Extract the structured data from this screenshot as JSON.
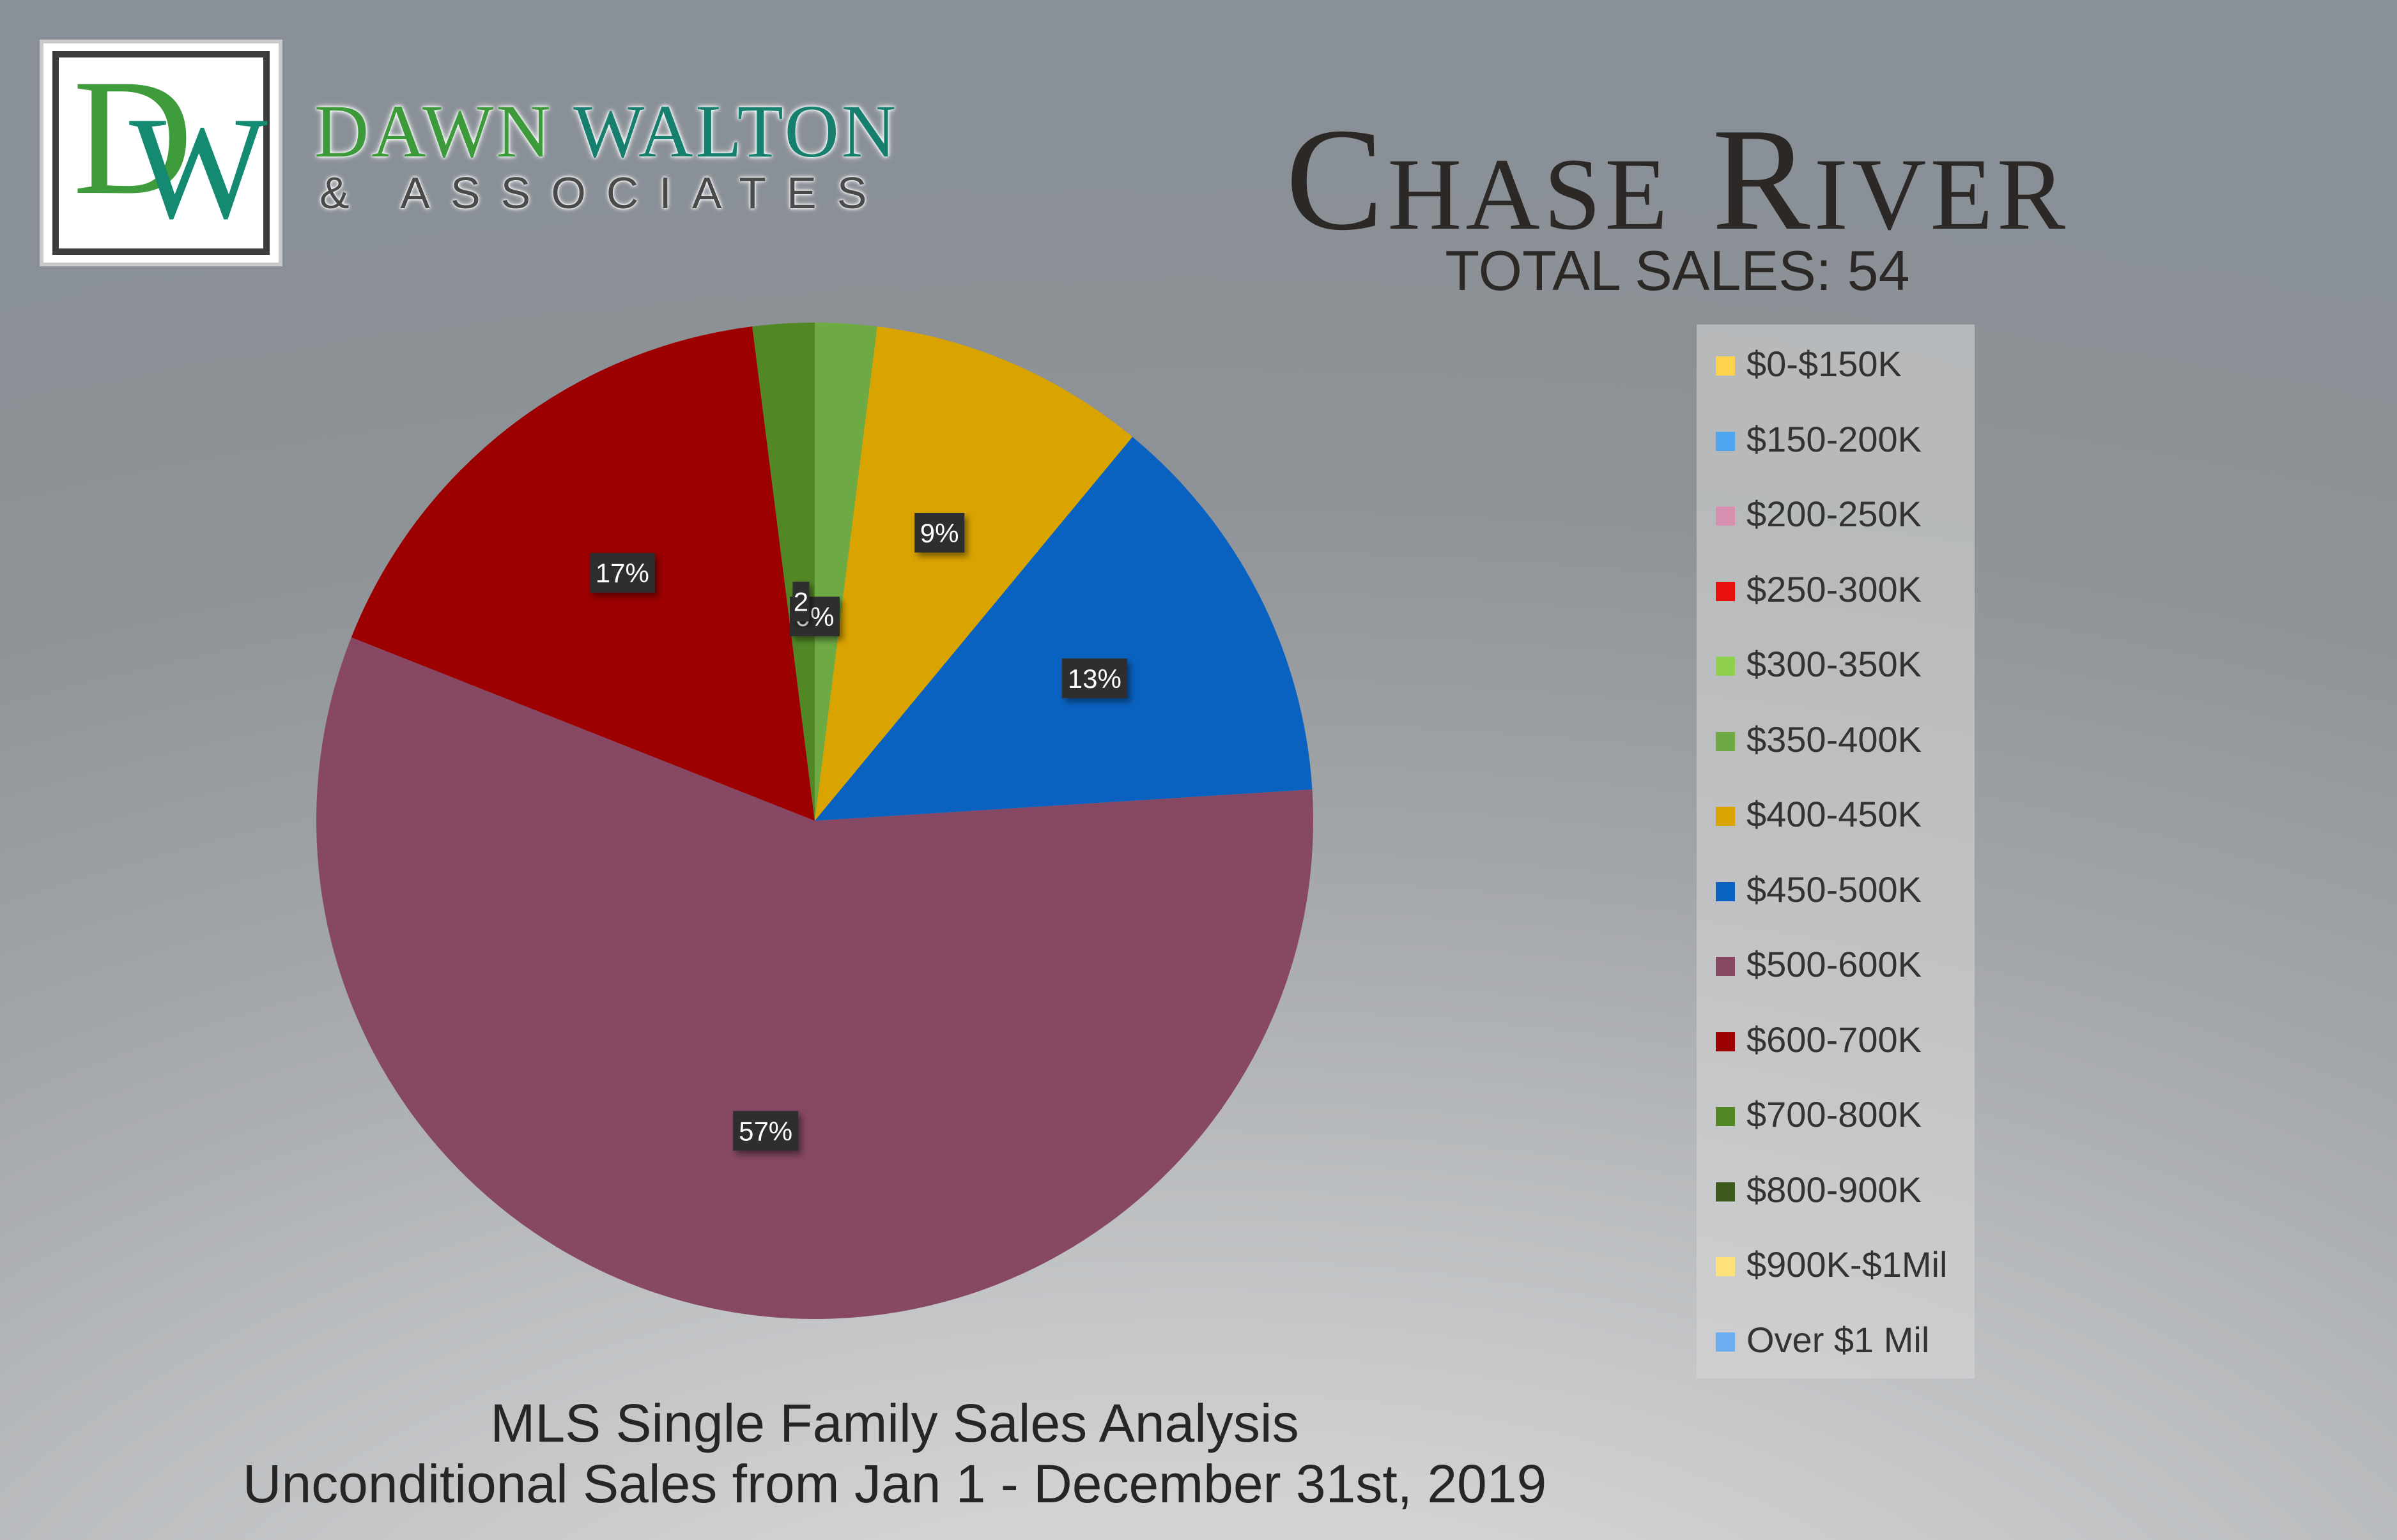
{
  "brand": {
    "logo_letter_d": "D",
    "logo_letter_w": "W",
    "name_part_1": "DAWN ",
    "name_part_2": "WALTON",
    "tagline": "& ASSOCIATES"
  },
  "footer": {
    "line_1": "MLS Single Family Sales Analysis",
    "line_2": "Unconditional Sales from Jan 1 - December 31st, 2019"
  },
  "chart_data": {
    "type": "pie",
    "title": "Chase River",
    "subtitle": "TOTAL SALES: 54",
    "legend_position": "right",
    "categories": [
      "$0-$150K",
      "$150-200K",
      "$200-250K",
      "$250-300K",
      "$300-350K",
      "$350-400K",
      "$400-450K",
      "$450-500K",
      "$500-600K",
      "$600-700K",
      "$700-800K",
      "$800-900K",
      "$900K-$1Mil",
      "Over $1 Mil"
    ],
    "values": [
      0,
      0,
      0,
      0,
      0,
      2,
      9,
      13,
      57,
      17,
      2,
      0,
      0,
      0
    ],
    "data_labels": [
      "",
      "",
      "",
      "",
      "0%",
      "",
      "9%",
      "13%",
      "57%",
      "17%",
      "2",
      "",
      "",
      ""
    ],
    "colors": [
      "#ffd24d",
      "#4ea6f0",
      "#d98fb0",
      "#e8100f",
      "#8fd14f",
      "#6daa44",
      "#d9a300",
      "#0a62c0",
      "#874864",
      "#9c0000",
      "#528726",
      "#3d5a1d",
      "#ffe27a",
      "#6aaef0"
    ]
  }
}
